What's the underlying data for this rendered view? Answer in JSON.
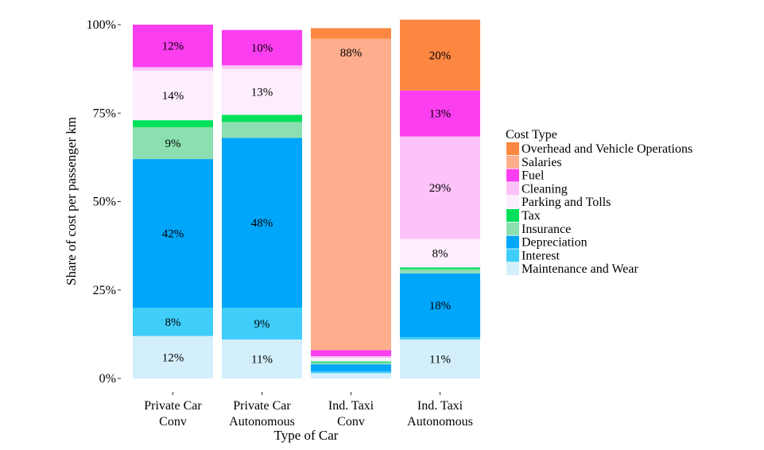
{
  "chart_data": {
    "type": "bar",
    "stacked": true,
    "title": "",
    "xlabel": "Type of Car",
    "ylabel": "Share of cost per passenger km",
    "ylim": [
      0,
      100
    ],
    "y_ticks": [
      "0%",
      "25%",
      "50%",
      "75%",
      "100%"
    ],
    "y_tick_values": [
      0,
      25,
      50,
      75,
      100
    ],
    "grid": false,
    "legend_position": "right",
    "legend_title": "Cost Type",
    "categories": [
      [
        "Private Car",
        "Conv"
      ],
      [
        "Private Car",
        "Autonomous"
      ],
      [
        "Ind. Taxi",
        "Conv"
      ],
      [
        "Ind. Taxi",
        "Autonomous"
      ]
    ],
    "series": [
      {
        "name": "Maintenance and Wear",
        "color": "#d3effb",
        "values": [
          12,
          11,
          1.5,
          11
        ]
      },
      {
        "name": "Interest",
        "color": "#3fcdfa",
        "values": [
          8,
          9,
          0.5,
          0.7
        ]
      },
      {
        "name": "Depreciation",
        "color": "#00a6fa",
        "values": [
          42,
          48,
          2,
          18
        ]
      },
      {
        "name": "Insurance",
        "color": "#8cdfb0",
        "values": [
          9,
          4.5,
          0.5,
          1.2
        ]
      },
      {
        "name": "Tax",
        "color": "#00e05a",
        "values": [
          2,
          2,
          0.3,
          0.5
        ]
      },
      {
        "name": "Parking and Tolls",
        "color": "#fceefc",
        "values": [
          14,
          13,
          1.0,
          8
        ]
      },
      {
        "name": "Cleaning",
        "color": "#fcc3f8",
        "values": [
          1,
          1,
          0.5,
          29
        ]
      },
      {
        "name": "Fuel",
        "color": "#fa3ef0",
        "values": [
          12,
          10,
          1.7,
          13
        ]
      },
      {
        "name": "Salaries",
        "color": "#feae8c",
        "values": [
          0,
          0,
          88,
          0
        ]
      },
      {
        "name": "Overhead and Vehicle Operations",
        "color": "#fd8640",
        "values": [
          0,
          0,
          3,
          20
        ]
      }
    ],
    "data_labels": [
      {
        "category": 0,
        "series": "Maintenance and Wear",
        "text": "12%"
      },
      {
        "category": 0,
        "series": "Interest",
        "text": "8%"
      },
      {
        "category": 0,
        "series": "Depreciation",
        "text": "42%"
      },
      {
        "category": 0,
        "series": "Insurance",
        "text": "9%"
      },
      {
        "category": 0,
        "series": "Parking and Tolls",
        "text": "14%"
      },
      {
        "category": 0,
        "series": "Fuel",
        "text": "12%"
      },
      {
        "category": 1,
        "series": "Maintenance and Wear",
        "text": "11%"
      },
      {
        "category": 1,
        "series": "Interest",
        "text": "9%"
      },
      {
        "category": 1,
        "series": "Depreciation",
        "text": "48%"
      },
      {
        "category": 1,
        "series": "Parking and Tolls",
        "text": "13%"
      },
      {
        "category": 1,
        "series": "Fuel",
        "text": "10%"
      },
      {
        "category": 2,
        "series": "Salaries",
        "text": "88%",
        "anchor": "top"
      },
      {
        "category": 3,
        "series": "Maintenance and Wear",
        "text": "11%"
      },
      {
        "category": 3,
        "series": "Depreciation",
        "text": "18%"
      },
      {
        "category": 3,
        "series": "Parking and Tolls",
        "text": "8%"
      },
      {
        "category": 3,
        "series": "Cleaning",
        "text": "29%"
      },
      {
        "category": 3,
        "series": "Fuel",
        "text": "13%"
      },
      {
        "category": 3,
        "series": "Overhead and Vehicle Operations",
        "text": "20%"
      }
    ],
    "legend_order": [
      "Overhead and Vehicle Operations",
      "Salaries",
      "Fuel",
      "Cleaning",
      "Parking and Tolls",
      "Tax",
      "Insurance",
      "Depreciation",
      "Interest",
      "Maintenance and Wear"
    ]
  }
}
